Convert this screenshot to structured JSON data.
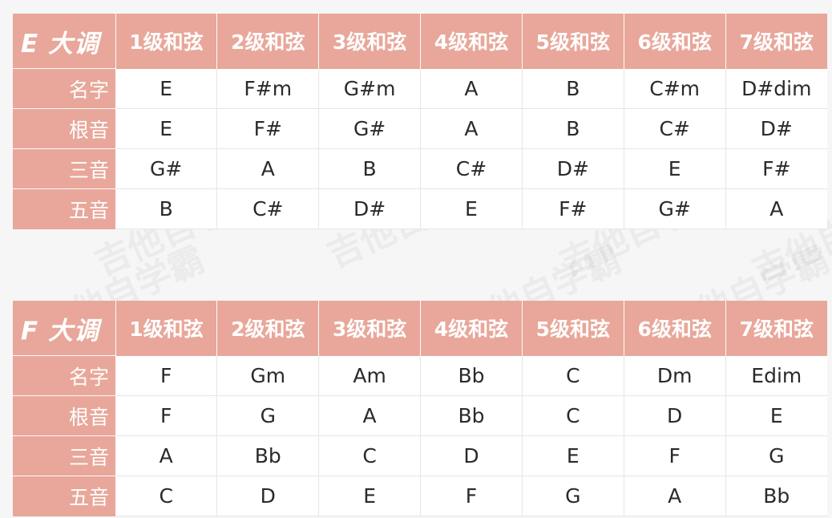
{
  "watermark": "吉他自学霸",
  "colors": {
    "header_bg": "#e8a79a",
    "header_text": "#ffffff",
    "cell_bg": "#ffffff",
    "cell_text": "#2a2a2a"
  },
  "tables": [
    {
      "key_title": "E 大调",
      "columns": [
        "1级和弦",
        "2级和弦",
        "3级和弦",
        "4级和弦",
        "5级和弦",
        "6级和弦",
        "7级和弦"
      ],
      "rows": [
        {
          "label": "名字",
          "values": [
            "E",
            "F#m",
            "G#m",
            "A",
            "B",
            "C#m",
            "D#dim"
          ]
        },
        {
          "label": "根音",
          "values": [
            "E",
            "F#",
            "G#",
            "A",
            "B",
            "C#",
            "D#"
          ]
        },
        {
          "label": "三音",
          "values": [
            "G#",
            "A",
            "B",
            "C#",
            "D#",
            "E",
            "F#"
          ]
        },
        {
          "label": "五音",
          "values": [
            "B",
            "C#",
            "D#",
            "E",
            "F#",
            "G#",
            "A"
          ]
        }
      ]
    },
    {
      "key_title": "F 大调",
      "columns": [
        "1级和弦",
        "2级和弦",
        "3级和弦",
        "4级和弦",
        "5级和弦",
        "6级和弦",
        "7级和弦"
      ],
      "rows": [
        {
          "label": "名字",
          "values": [
            "F",
            "Gm",
            "Am",
            "Bb",
            "C",
            "Dm",
            "Edim"
          ]
        },
        {
          "label": "根音",
          "values": [
            "F",
            "G",
            "A",
            "Bb",
            "C",
            "D",
            "E"
          ]
        },
        {
          "label": "三音",
          "values": [
            "A",
            "Bb",
            "C",
            "D",
            "E",
            "F",
            "G"
          ]
        },
        {
          "label": "五音",
          "values": [
            "C",
            "D",
            "E",
            "F",
            "G",
            "A",
            "Bb"
          ]
        }
      ]
    }
  ]
}
